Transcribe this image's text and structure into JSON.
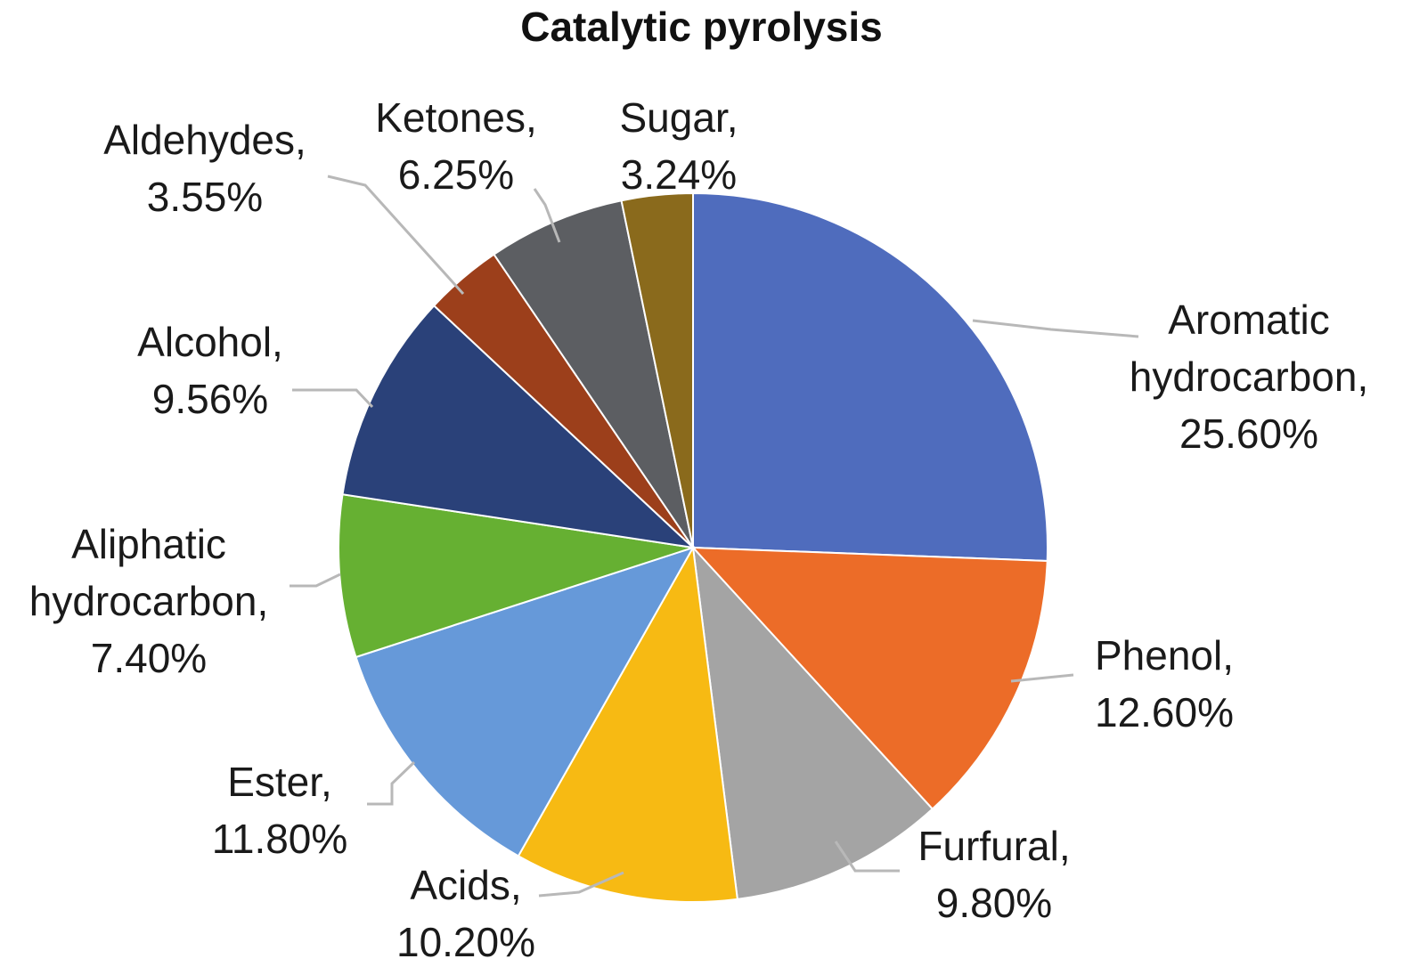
{
  "chart_data": {
    "type": "pie",
    "title": "Catalytic pyrolysis",
    "unit": "%",
    "slices": [
      {
        "name": "Aromatic hydrocarbon",
        "value": 25.6,
        "label_lines": [
          "Aromatic",
          "hydrocarbon,",
          "25.60%"
        ],
        "color": "#4F6CBD"
      },
      {
        "name": "Phenol",
        "value": 12.6,
        "label_lines": [
          "Phenol,",
          "12.60%"
        ],
        "color": "#EC6C28"
      },
      {
        "name": "Furfural",
        "value": 9.8,
        "label_lines": [
          "Furfural,",
          "9.80%"
        ],
        "color": "#A4A4A4"
      },
      {
        "name": "Acids",
        "value": 10.2,
        "label_lines": [
          "Acids,",
          "10.20%"
        ],
        "color": "#F7BA13"
      },
      {
        "name": "Ester",
        "value": 11.8,
        "label_lines": [
          "Ester,",
          "11.80%"
        ],
        "color": "#6699D9"
      },
      {
        "name": "Aliphatic hydrocarbon",
        "value": 7.4,
        "label_lines": [
          "Aliphatic",
          "hydrocarbon,",
          "7.40%"
        ],
        "color": "#66B032"
      },
      {
        "name": "Alcohol",
        "value": 9.56,
        "label_lines": [
          "Alcohol,",
          "9.56%"
        ],
        "color": "#2A4179"
      },
      {
        "name": "Aldehydes",
        "value": 3.55,
        "label_lines": [
          "Aldehydes,",
          "3.55%"
        ],
        "color": "#9C3F1B"
      },
      {
        "name": "Ketones",
        "value": 6.25,
        "label_lines": [
          "Ketones,",
          "6.25%"
        ],
        "color": "#5C5E62"
      },
      {
        "name": "Sugar",
        "value": 3.24,
        "label_lines": [
          "Sugar,",
          "3.24%"
        ],
        "color": "#8A6A1C"
      }
    ]
  }
}
